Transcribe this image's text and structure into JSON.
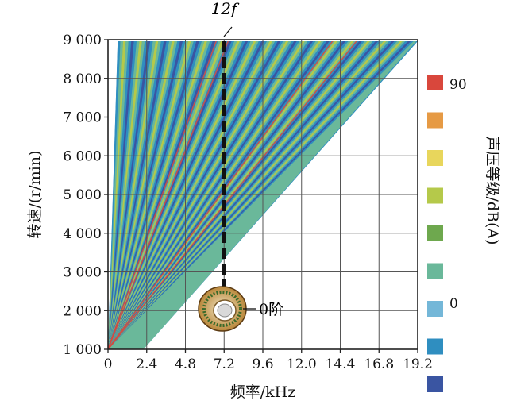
{
  "chart_data": {
    "type": "heatmap",
    "title": "",
    "xlabel": "频率/kHz",
    "ylabel": "转速/(r/min)",
    "xlim": [
      0,
      19.2
    ],
    "ylim": [
      1000,
      9000
    ],
    "x_ticks": [
      "0",
      "2.4",
      "4.8",
      "7.2",
      "9.6",
      "12.0",
      "14.4",
      "16.8",
      "19.2"
    ],
    "y_ticks": [
      "1 000",
      "2 000",
      "3 000",
      "4 000",
      "5 000",
      "6 000",
      "7 000",
      "8 000",
      "9 000"
    ],
    "grid": true,
    "colorbar": {
      "label": "声压等级/dB(A)",
      "max_label": "90",
      "min_label": "0",
      "levels": [
        "#d9473c",
        "#e69a44",
        "#e8d65c",
        "#b5c94a",
        "#6ea84e",
        "#6ab89a",
        "#74b7d8",
        "#2f8ec0",
        "#3a55a2"
      ]
    },
    "fan_band": {
      "apex": [
        0,
        1000
      ],
      "top_range": [
        0.6,
        19.2
      ],
      "bottom_range": [
        0,
        2.2
      ]
    },
    "annotations": {
      "order_line": {
        "label": "12f",
        "x": 7.2,
        "y_range": [
          2600,
          9000
        ]
      },
      "mode_label": {
        "label": "0阶",
        "x": 8.8,
        "y": 2000
      }
    }
  }
}
